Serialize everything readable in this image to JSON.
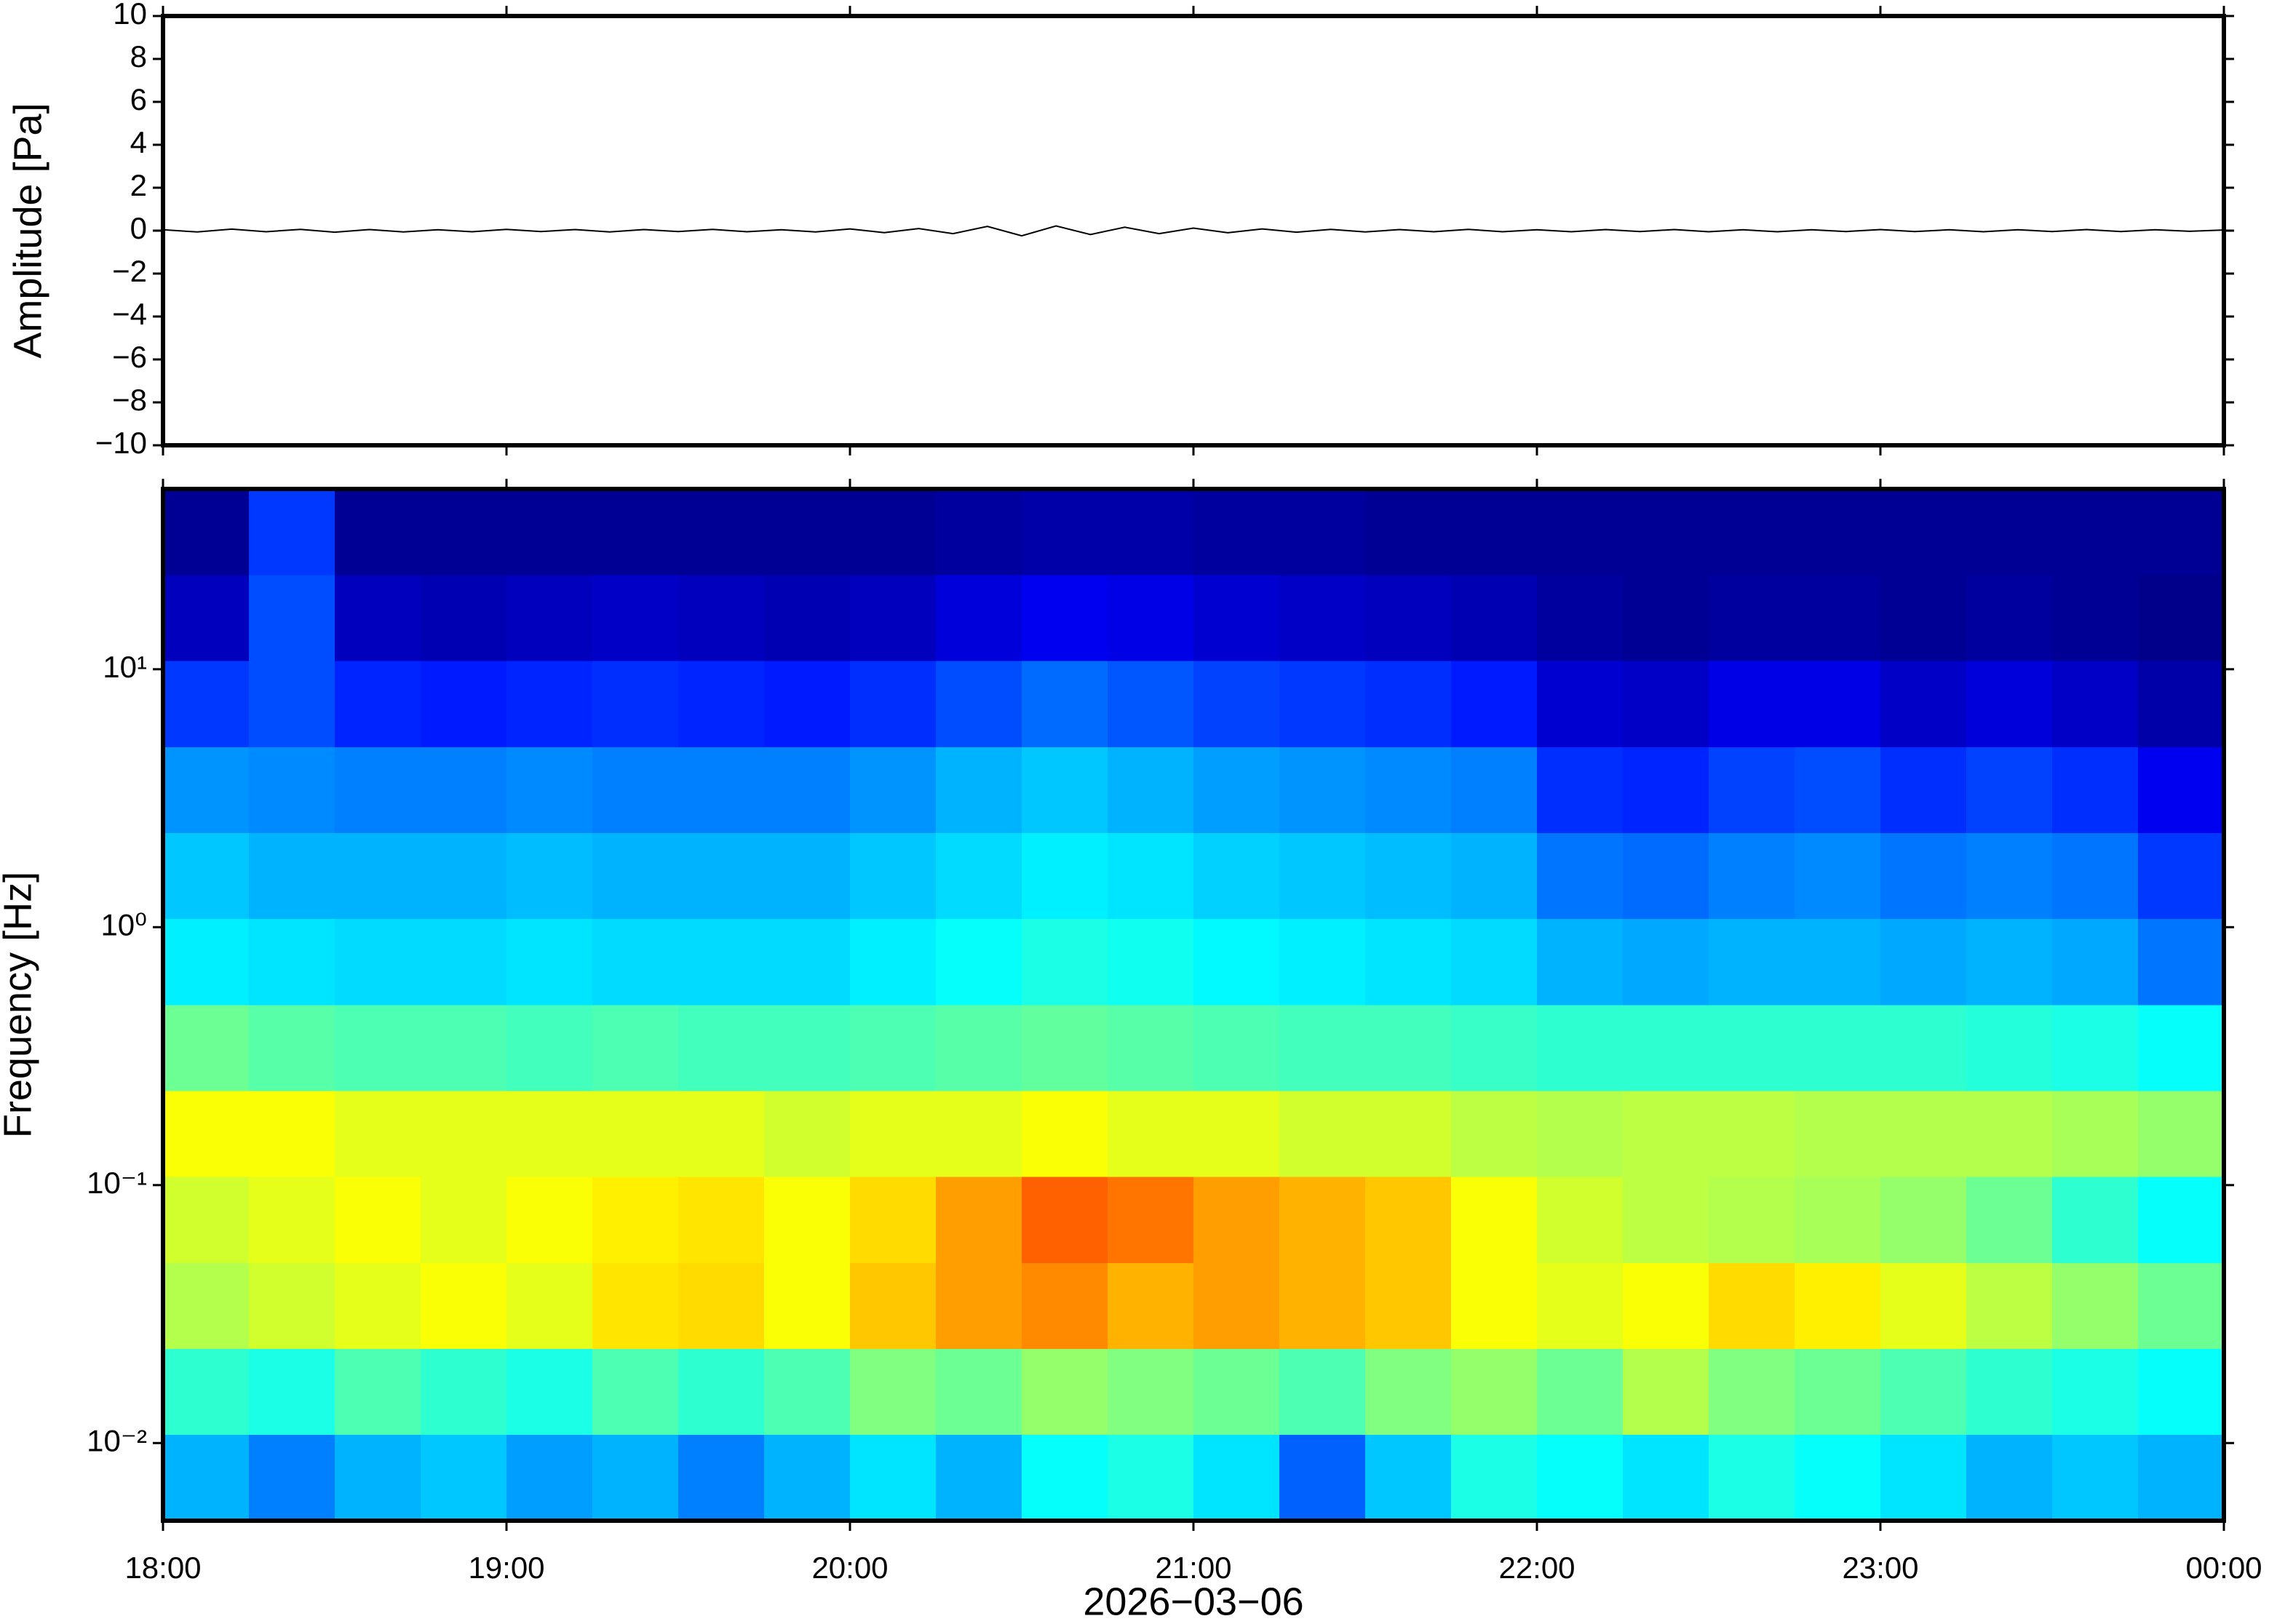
{
  "chart_data": [
    {
      "type": "line",
      "ylabel": "Amplitude [Pa]",
      "color": "#000000",
      "xlim": [
        18,
        24
      ],
      "xticks": [
        18,
        19,
        20,
        21,
        22,
        23,
        24
      ],
      "ylim": [
        -10,
        10
      ],
      "yticks": [
        {
          "value": -10,
          "label": "−10"
        },
        {
          "value": -8,
          "label": "−8"
        },
        {
          "value": -6,
          "label": "−6"
        },
        {
          "value": -4,
          "label": "−4"
        },
        {
          "value": -2,
          "label": "−2"
        },
        0,
        2,
        4,
        6,
        8,
        10
      ],
      "x": [
        18.0,
        18.1,
        18.2,
        18.3,
        18.4,
        18.5,
        18.6,
        18.7,
        18.8,
        18.9,
        19.0,
        19.1,
        19.2,
        19.3,
        19.4,
        19.5,
        19.6,
        19.7,
        19.8,
        19.9,
        20.0,
        20.1,
        20.2,
        20.3,
        20.4,
        20.5,
        20.6,
        20.7,
        20.8,
        20.9,
        21.0,
        21.1,
        21.2,
        21.3,
        21.4,
        21.5,
        21.6,
        21.7,
        21.8,
        21.9,
        22.0,
        22.1,
        22.2,
        22.3,
        22.4,
        22.5,
        22.6,
        22.7,
        22.8,
        22.9,
        23.0,
        23.1,
        23.2,
        23.3,
        23.4,
        23.5,
        23.6,
        23.7,
        23.8,
        23.9,
        24.0
      ],
      "values": [
        0.04,
        -0.06,
        0.07,
        -0.05,
        0.06,
        -0.07,
        0.05,
        -0.06,
        0.04,
        -0.05,
        0.06,
        -0.04,
        0.05,
        -0.06,
        0.05,
        -0.04,
        0.06,
        -0.05,
        0.04,
        -0.06,
        0.08,
        -0.09,
        0.1,
        -0.14,
        0.2,
        -0.24,
        0.22,
        -0.18,
        0.16,
        -0.14,
        0.12,
        -0.1,
        0.08,
        -0.07,
        0.06,
        -0.06,
        0.05,
        -0.05,
        0.06,
        -0.05,
        0.04,
        -0.05,
        0.05,
        -0.04,
        0.05,
        -0.05,
        0.04,
        -0.05,
        0.04,
        -0.04,
        0.05,
        -0.04,
        0.04,
        -0.05,
        0.04,
        -0.04,
        0.05,
        -0.04,
        0.04,
        -0.03,
        0.03
      ]
    },
    {
      "type": "heatmap",
      "ylabel": "Frequency [Hz]",
      "xlabel": "2026−03−06",
      "colormap": "jet",
      "log_y": true,
      "xlim": [
        18,
        24
      ],
      "xticks": [
        {
          "value": 18,
          "label": "18:00"
        },
        {
          "value": 19,
          "label": "19:00"
        },
        {
          "value": 20,
          "label": "20:00"
        },
        {
          "value": 21,
          "label": "21:00"
        },
        {
          "value": 22,
          "label": "22:00"
        },
        {
          "value": 23,
          "label": "23:00"
        },
        {
          "value": 24,
          "label": "00:00"
        }
      ],
      "ylim": [
        0.005,
        50
      ],
      "yticks": [
        {
          "value": 0.01,
          "label": "10⁻²"
        },
        {
          "value": 0.1,
          "label": "10⁻¹"
        },
        {
          "value": 1,
          "label": "10⁰"
        },
        {
          "value": 10,
          "label": "10¹"
        }
      ],
      "x_bins": [
        18,
        18.25,
        18.5,
        18.75,
        19,
        19.25,
        19.5,
        19.75,
        20,
        20.25,
        20.5,
        20.75,
        21,
        21.25,
        21.5,
        21.75,
        22,
        22.25,
        22.5,
        22.75,
        23,
        23.25,
        23.5,
        23.75,
        24
      ],
      "y_bins": [
        0.005,
        0.0108,
        0.0232,
        0.05,
        0.108,
        0.232,
        0.5,
        1.08,
        2.32,
        5,
        10.8,
        23.2,
        50
      ],
      "values": [
        [
          0.3,
          0.25,
          0.3,
          0.32,
          0.28,
          0.3,
          0.25,
          0.3,
          0.35,
          0.3,
          0.38,
          0.4,
          0.35,
          0.22,
          0.32,
          0.4,
          0.38,
          0.35,
          0.4,
          0.38,
          0.35,
          0.3,
          0.32,
          0.3
        ],
        [
          0.42,
          0.4,
          0.45,
          0.42,
          0.4,
          0.45,
          0.42,
          0.45,
          0.5,
          0.48,
          0.52,
          0.5,
          0.48,
          0.45,
          0.5,
          0.52,
          0.48,
          0.55,
          0.5,
          0.48,
          0.45,
          0.42,
          0.4,
          0.38
        ],
        [
          0.55,
          0.58,
          0.6,
          0.62,
          0.6,
          0.65,
          0.66,
          0.62,
          0.68,
          0.72,
          0.74,
          0.7,
          0.72,
          0.7,
          0.68,
          0.62,
          0.6,
          0.62,
          0.66,
          0.64,
          0.6,
          0.56,
          0.52,
          0.48
        ],
        [
          0.58,
          0.6,
          0.62,
          0.6,
          0.62,
          0.64,
          0.65,
          0.62,
          0.66,
          0.72,
          0.78,
          0.76,
          0.72,
          0.7,
          0.68,
          0.62,
          0.58,
          0.56,
          0.55,
          0.54,
          0.52,
          0.48,
          0.42,
          0.38
        ],
        [
          0.62,
          0.62,
          0.6,
          0.6,
          0.6,
          0.6,
          0.6,
          0.58,
          0.6,
          0.6,
          0.62,
          0.6,
          0.6,
          0.58,
          0.58,
          0.56,
          0.55,
          0.56,
          0.56,
          0.55,
          0.55,
          0.55,
          0.54,
          0.52
        ],
        [
          0.48,
          0.46,
          0.45,
          0.45,
          0.44,
          0.45,
          0.44,
          0.44,
          0.45,
          0.46,
          0.47,
          0.46,
          0.45,
          0.44,
          0.44,
          0.43,
          0.42,
          0.42,
          0.42,
          0.42,
          0.42,
          0.41,
          0.4,
          0.38
        ],
        [
          0.36,
          0.35,
          0.34,
          0.34,
          0.35,
          0.34,
          0.34,
          0.34,
          0.36,
          0.38,
          0.4,
          0.39,
          0.37,
          0.36,
          0.35,
          0.34,
          0.3,
          0.29,
          0.3,
          0.3,
          0.29,
          0.3,
          0.29,
          0.24
        ],
        [
          0.32,
          0.3,
          0.3,
          0.3,
          0.31,
          0.3,
          0.3,
          0.3,
          0.32,
          0.34,
          0.36,
          0.35,
          0.33,
          0.32,
          0.31,
          0.3,
          0.24,
          0.23,
          0.25,
          0.26,
          0.24,
          0.25,
          0.24,
          0.18
        ],
        [
          0.27,
          0.26,
          0.25,
          0.25,
          0.26,
          0.25,
          0.25,
          0.25,
          0.27,
          0.3,
          0.32,
          0.3,
          0.28,
          0.27,
          0.26,
          0.25,
          0.17,
          0.16,
          0.19,
          0.2,
          0.17,
          0.19,
          0.17,
          0.11
        ],
        [
          0.18,
          0.2,
          0.16,
          0.15,
          0.16,
          0.17,
          0.16,
          0.15,
          0.17,
          0.2,
          0.23,
          0.21,
          0.19,
          0.18,
          0.17,
          0.15,
          0.08,
          0.07,
          0.1,
          0.1,
          0.07,
          0.09,
          0.07,
          0.04
        ],
        [
          0.06,
          0.2,
          0.06,
          0.05,
          0.06,
          0.07,
          0.06,
          0.05,
          0.06,
          0.09,
          0.11,
          0.1,
          0.08,
          0.07,
          0.06,
          0.05,
          0.03,
          0.02,
          0.03,
          0.03,
          0.02,
          0.03,
          0.02,
          0.01
        ],
        [
          0.02,
          0.18,
          0.02,
          0.02,
          0.02,
          0.02,
          0.02,
          0.02,
          0.02,
          0.03,
          0.04,
          0.04,
          0.03,
          0.03,
          0.02,
          0.02,
          0.02,
          0.02,
          0.02,
          0.02,
          0.02,
          0.02,
          0.02,
          0.02
        ]
      ]
    }
  ]
}
